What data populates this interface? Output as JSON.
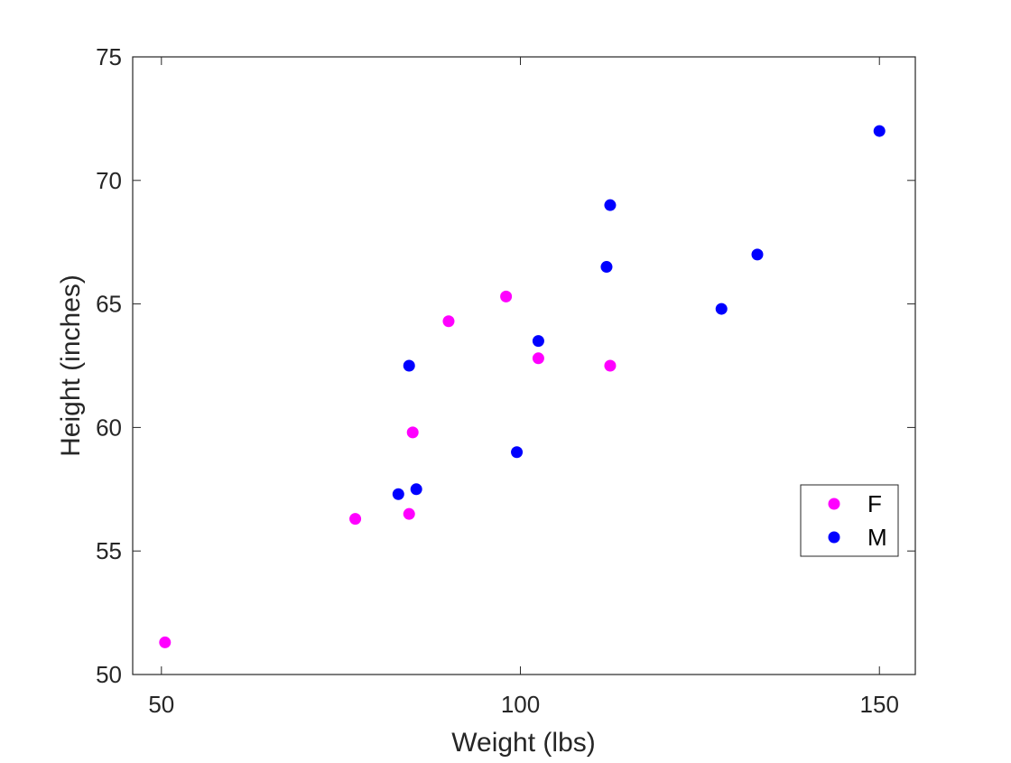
{
  "colors": {
    "F": "#ff00ff",
    "M": "#0000ff",
    "axis": "#262626",
    "background": "#ffffff"
  },
  "chart_data": {
    "type": "scatter",
    "xlabel": "Weight (lbs)",
    "ylabel": "Height (inches)",
    "xlim": [
      46,
      155
    ],
    "ylim": [
      50,
      75
    ],
    "xticks": [
      50,
      100,
      150
    ],
    "yticks": [
      50,
      55,
      60,
      65,
      70,
      75
    ],
    "grid": false,
    "legend_position": "bottom-right",
    "series": [
      {
        "name": "F",
        "color": "#ff00ff",
        "points": [
          {
            "x": 50.5,
            "y": 51.3
          },
          {
            "x": 77.0,
            "y": 56.3
          },
          {
            "x": 84.5,
            "y": 56.5
          },
          {
            "x": 85.0,
            "y": 59.8
          },
          {
            "x": 90.0,
            "y": 64.3
          },
          {
            "x": 98.0,
            "y": 65.3
          },
          {
            "x": 102.5,
            "y": 62.8
          },
          {
            "x": 112.5,
            "y": 62.5
          }
        ]
      },
      {
        "name": "M",
        "color": "#0000ff",
        "points": [
          {
            "x": 83.0,
            "y": 57.3
          },
          {
            "x": 85.5,
            "y": 57.5
          },
          {
            "x": 84.5,
            "y": 62.5
          },
          {
            "x": 99.5,
            "y": 59.0
          },
          {
            "x": 102.5,
            "y": 63.5
          },
          {
            "x": 112.0,
            "y": 66.5
          },
          {
            "x": 112.5,
            "y": 69.0
          },
          {
            "x": 128.0,
            "y": 64.8
          },
          {
            "x": 133.0,
            "y": 67.0
          },
          {
            "x": 150.0,
            "y": 72.0
          }
        ]
      }
    ]
  }
}
